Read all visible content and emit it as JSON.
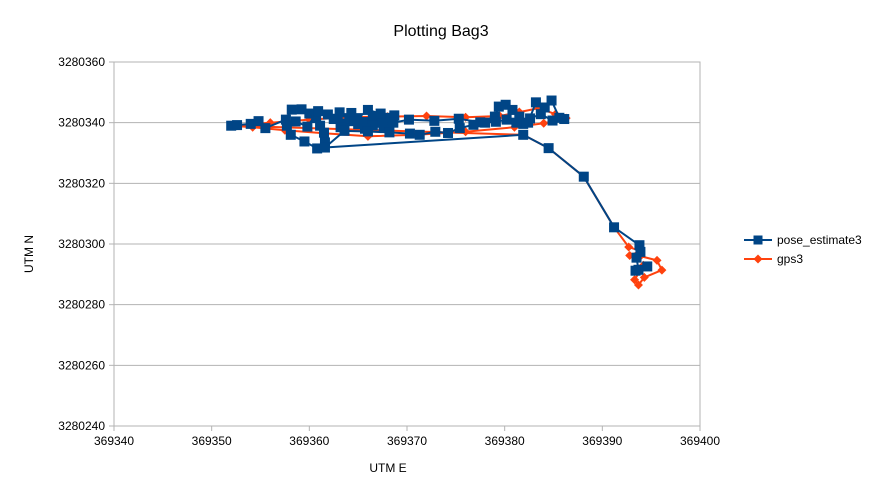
{
  "chart_data": {
    "type": "scatter",
    "title": "Plotting Bag3",
    "xlabel": "UTM E",
    "ylabel": "UTM N",
    "xlim": [
      369340,
      369400
    ],
    "ylim": [
      3280240,
      3280360
    ],
    "xticks": [
      369340,
      369350,
      369360,
      369370,
      369380,
      369390,
      369400
    ],
    "yticks": [
      3280240,
      3280260,
      3280280,
      3280300,
      3280320,
      3280340,
      3280360
    ],
    "grid": "horizontal",
    "legend_position": "right",
    "series": [
      {
        "name": "pose_estimate3",
        "color": "#004586",
        "marker": "square",
        "x": [
          369352.0,
          369352.6,
          369354.0,
          369354.8,
          369355.5,
          369357.6,
          369358.2,
          369359.2,
          369360.0,
          369360.7,
          369361.1,
          369361.5,
          369361.6,
          369360.8,
          369359.5,
          369358.1,
          369357.7,
          369358.6,
          369359.8,
          369360.9,
          369361.9,
          369362.9,
          369363.6,
          369364.3,
          369364.9,
          369365.7,
          369366.5,
          369367.2,
          369367.6,
          369368.3,
          369368.7,
          369368.2,
          369367.4,
          369366.5,
          369365.7,
          369365.0,
          369364.1,
          369363.1,
          369362.5,
          369363.2,
          369364.6,
          369366.0,
          369367.3,
          369368.6,
          369370.2,
          369372.8,
          369375.3,
          369377.5,
          369379.0,
          369379.4,
          369380.1,
          369380.8,
          369381.5,
          369382.4,
          369383.2,
          369384.1,
          369384.8,
          369385.6,
          369386.1,
          369384.9,
          369383.7,
          369382.6,
          369381.9,
          369381.2,
          369380.2,
          369379.1,
          369378.0,
          369376.8,
          369375.4,
          369374.2,
          369372.9,
          369371.3,
          369370.3,
          369368.2,
          369366.0,
          369363.6,
          369361.6,
          369381.9,
          369384.5,
          369388.1,
          369391.2,
          369393.8,
          369393.9,
          369393.5,
          369393.7,
          369394.6,
          369393.4
        ],
        "y": [
          3280339.0,
          3280339.2,
          3280339.6,
          3280340.5,
          3280338.2,
          3280341.0,
          3280344.3,
          3280344.4,
          3280343.0,
          3280341.5,
          3280339.0,
          3280336.7,
          3280333.5,
          3280331.5,
          3280333.8,
          3280336.0,
          3280339.0,
          3280340.4,
          3280338.7,
          3280343.8,
          3280342.7,
          3280341.3,
          3280339.7,
          3280343.2,
          3280341.5,
          3280340.2,
          3280342.0,
          3280340.0,
          3280338.8,
          3280341.0,
          3280342.4,
          3280341.6,
          3280340.0,
          3280339.1,
          3280338.0,
          3280339.5,
          3280341.5,
          3280343.4,
          3280341.2,
          3280338.5,
          3280340.5,
          3280344.2,
          3280343.0,
          3280340.0,
          3280341.0,
          3280340.6,
          3280341.3,
          3280340.1,
          3280342.0,
          3280345.3,
          3280345.9,
          3280344.2,
          3280342.0,
          3280340.0,
          3280346.7,
          3280345.0,
          3280347.3,
          3280341.6,
          3280341.2,
          3280340.7,
          3280342.8,
          3280341.4,
          3280339.6,
          3280340.0,
          3280341.0,
          3280340.3,
          3280340.0,
          3280339.3,
          3280338.2,
          3280336.6,
          3280337.0,
          3280336.0,
          3280336.4,
          3280336.8,
          3280337.1,
          3280337.3,
          3280331.8,
          3280336.0,
          3280331.6,
          3280322.2,
          3280305.5,
          3280299.6,
          3280297.4,
          3280295.5,
          3280291.5,
          3280292.6,
          3280291.2
        ]
      },
      {
        "name": "gps3",
        "color": "#ff420e",
        "marker": "diamond",
        "x": [
          369352.0,
          369356.0,
          369360.0,
          369364.0,
          369368.0,
          369372.0,
          369376.0,
          369379.5,
          369381.5,
          369383.5,
          369385.2,
          369386.3,
          369384.0,
          369381.0,
          369376.0,
          369371.0,
          369366.0,
          369361.5,
          369357.5,
          369354.2,
          369352.0,
          369381.9,
          369384.5,
          369388.1,
          369391.2,
          369392.7,
          369393.9,
          369392.8,
          369393.9,
          369395.6,
          369396.1,
          369394.3,
          369393.7,
          369393.3,
          369394.2
        ],
        "y": [
          3280339.0,
          3280340.0,
          3280341.0,
          3280341.8,
          3280342.0,
          3280342.2,
          3280341.8,
          3280342.2,
          3280343.5,
          3280344.8,
          3280342.8,
          3280341.5,
          3280339.8,
          3280338.5,
          3280337.0,
          3280336.0,
          3280335.5,
          3280336.5,
          3280337.5,
          3280338.5,
          3280339.0,
          3280336.0,
          3280331.6,
          3280322.2,
          3280305.5,
          3280299.0,
          3280297.7,
          3280296.2,
          3280296.0,
          3280294.6,
          3280291.4,
          3280289.0,
          3280286.5,
          3280288.2,
          3280293.0
        ]
      }
    ]
  }
}
